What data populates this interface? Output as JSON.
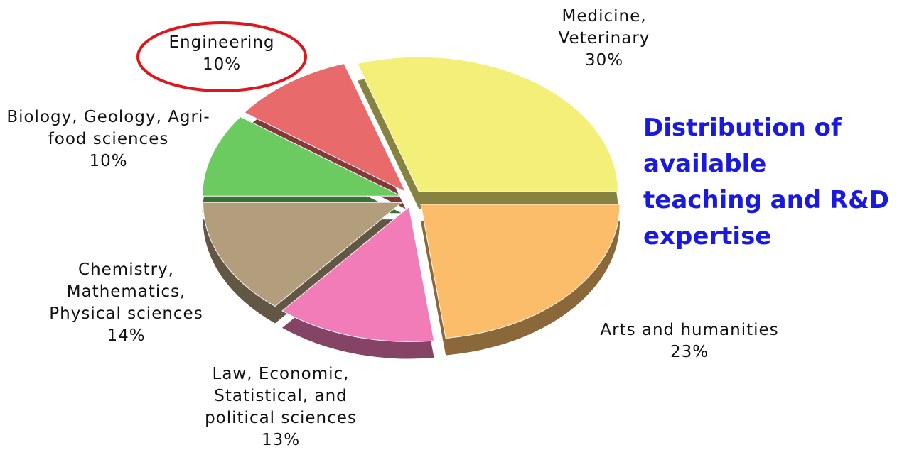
{
  "chart_data": {
    "type": "pie",
    "title": "Distribution of available teaching and R&D expertise",
    "categories": [
      "Medicine, Veterinary",
      "Arts and humanities",
      "Law, Economic, Statistical, and political sciences",
      "Chemistry, Mathematics, Physical sciences",
      "Biology, Geology, Agri-food sciences",
      "Engineering"
    ],
    "values": [
      30,
      23,
      13,
      14,
      10,
      10
    ],
    "value_labels": [
      "30%",
      "23%",
      "13%",
      "14%",
      "10%",
      "10%"
    ],
    "colors": [
      "#f4ef78",
      "#fbbd6a",
      "#f27cb8",
      "#b29d7c",
      "#6ccb60",
      "#e86a6a"
    ]
  }
}
